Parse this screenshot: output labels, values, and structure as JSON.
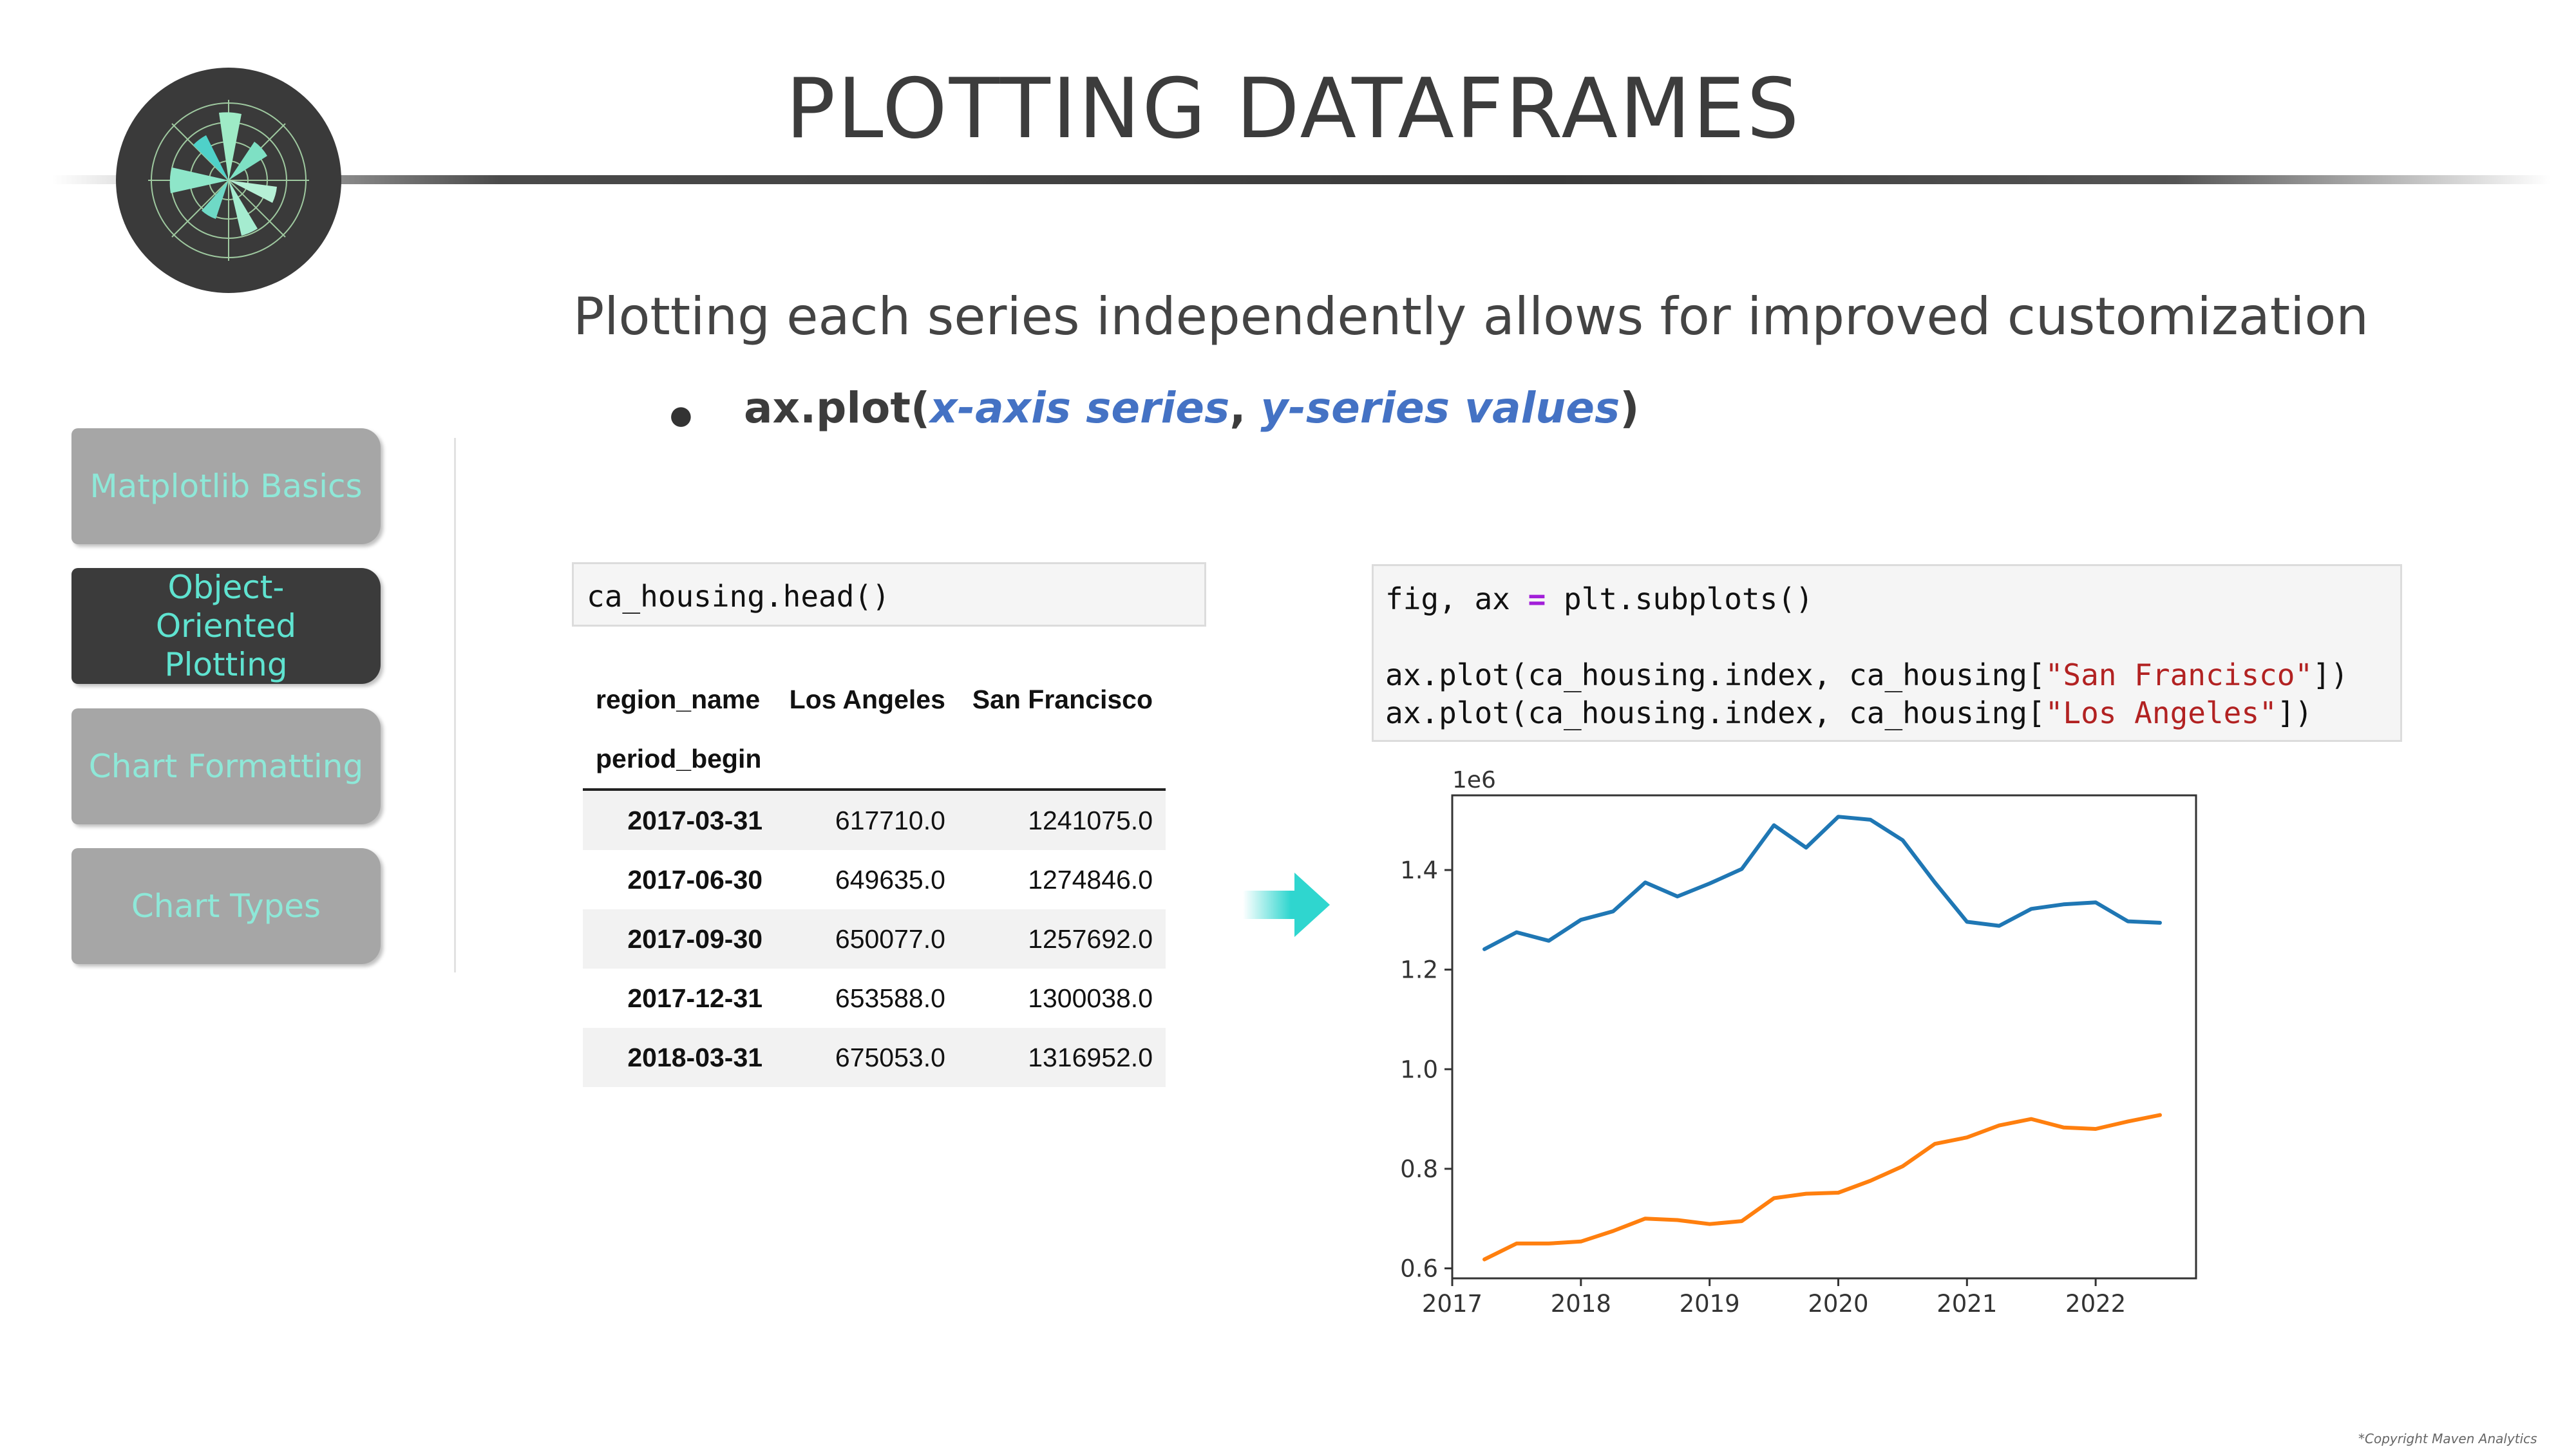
{
  "slide": {
    "title": "PLOTTING DATAFRAMES",
    "subtitle": "Plotting each series independently allows for improved customization",
    "bullet": {
      "fn_open": "ax.plot(",
      "arg1": "x-axis series",
      "sep": ", ",
      "arg2": "y-series values",
      "close": ")"
    },
    "copyright": "*Copyright Maven Analytics"
  },
  "logo": {
    "icon": "polar-chart-logo-icon"
  },
  "sidebar": {
    "items": [
      {
        "label": "Matplotlib Basics",
        "active": false
      },
      {
        "label": "Object-Oriented Plotting",
        "active": true
      },
      {
        "label": "Chart Formatting",
        "active": false
      },
      {
        "label": "Chart Types",
        "active": false
      }
    ]
  },
  "code_cell_1": {
    "code": "ca_housing.head()"
  },
  "code_cell_2": {
    "line1_a": "fig, ax ",
    "line1_eq": "=",
    "line1_b": " plt.subplots()",
    "line2_a": "ax.plot(ca_housing.index, ca_housing[",
    "line2_str": "\"San Francisco\"",
    "line2_b": "])",
    "line3_a": "ax.plot(ca_housing.index, ca_housing[",
    "line3_str": "\"Los Angeles\"",
    "line3_b": "])"
  },
  "dataframe": {
    "columns_name": "region_name",
    "columns": [
      "Los Angeles",
      "San Francisco"
    ],
    "index_name": "period_begin",
    "rows": [
      {
        "index": "2017-03-31",
        "values": [
          "617710.0",
          "1241075.0"
        ]
      },
      {
        "index": "2017-06-30",
        "values": [
          "649635.0",
          "1274846.0"
        ]
      },
      {
        "index": "2017-09-30",
        "values": [
          "650077.0",
          "1257692.0"
        ]
      },
      {
        "index": "2017-12-31",
        "values": [
          "653588.0",
          "1300038.0"
        ]
      },
      {
        "index": "2018-03-31",
        "values": [
          "675053.0",
          "1316952.0"
        ]
      }
    ]
  },
  "arrow": {
    "icon": "right-arrow-icon",
    "color": "#2fd6cf"
  },
  "chart_data": {
    "type": "line",
    "offset_label": "1e6",
    "x": [
      2017.25,
      2017.5,
      2017.75,
      2018.0,
      2018.25,
      2018.5,
      2018.75,
      2019.0,
      2019.25,
      2019.5,
      2019.75,
      2020.0,
      2020.25,
      2020.5,
      2020.75,
      2021.0,
      2021.25,
      2021.5,
      2021.75,
      2022.0,
      2022.25,
      2022.5
    ],
    "series": [
      {
        "color": "#1f77b4",
        "values": [
          1.241,
          1.275,
          1.258,
          1.3,
          1.317,
          1.375,
          1.347,
          1.373,
          1.402,
          1.49,
          1.445,
          1.507,
          1.501,
          1.46,
          1.375,
          1.296,
          1.288,
          1.322,
          1.331,
          1.335,
          1.297,
          1.294
        ]
      },
      {
        "color": "#ff7f0e",
        "values": [
          0.618,
          0.65,
          0.65,
          0.654,
          0.675,
          0.7,
          0.697,
          0.689,
          0.695,
          0.741,
          0.75,
          0.752,
          0.776,
          0.805,
          0.85,
          0.863,
          0.887,
          0.9,
          0.883,
          0.88,
          0.895,
          0.908
        ]
      }
    ],
    "xticks": [
      2017,
      2018,
      2019,
      2020,
      2021,
      2022
    ],
    "xtick_labels": [
      "2017",
      "2018",
      "2019",
      "2020",
      "2021",
      "2022"
    ],
    "yticks": [
      0.6,
      0.8,
      1.0,
      1.2,
      1.4
    ],
    "ytick_labels": [
      "0.6",
      "0.8",
      "1.0",
      "1.2",
      "1.4"
    ],
    "xlim": [
      2017.0,
      2022.78
    ],
    "ylim": [
      0.58,
      1.55
    ],
    "grid": false
  }
}
